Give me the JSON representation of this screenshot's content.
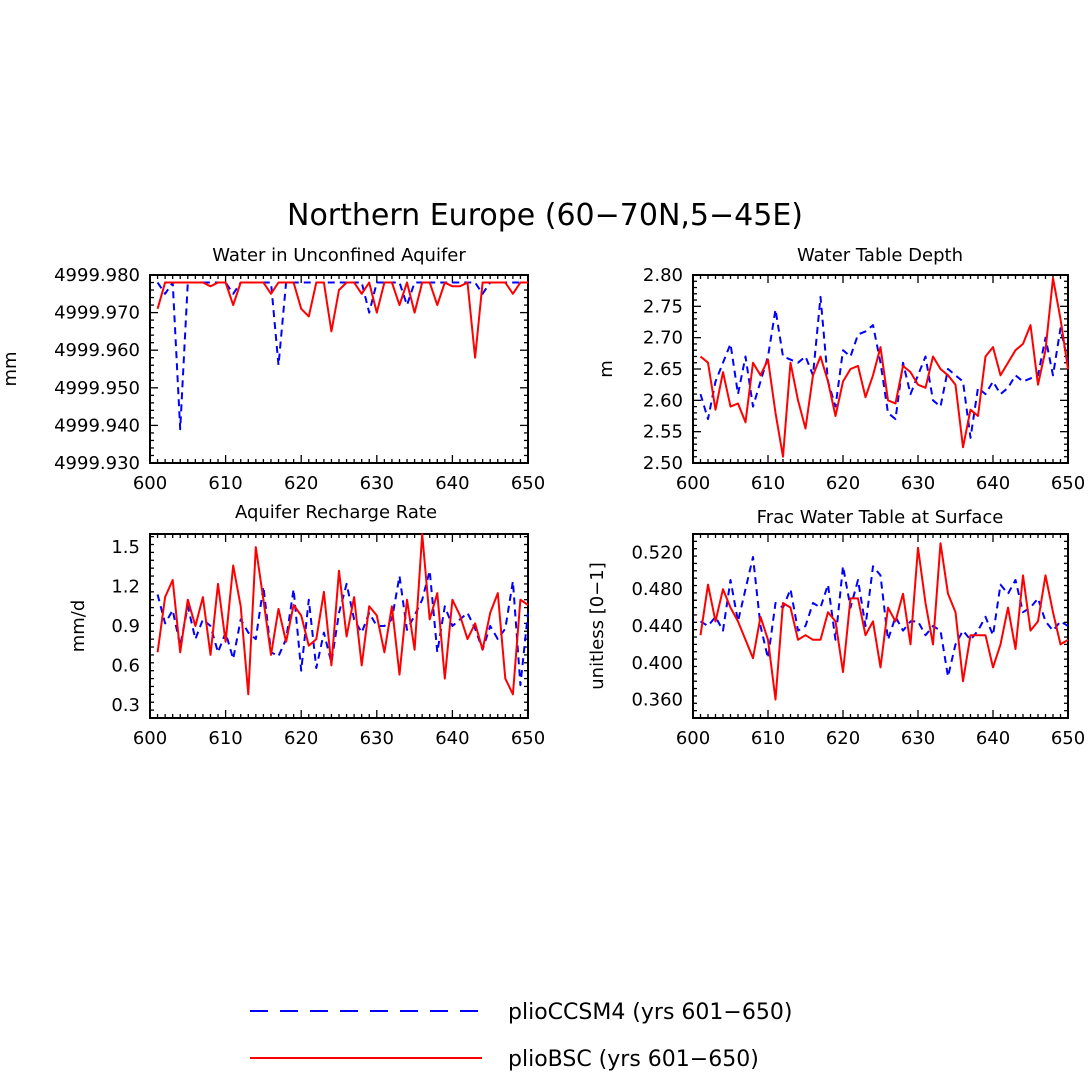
{
  "figure": {
    "title": "Northern Europe (60−70N,5−45E)"
  },
  "legend": [
    {
      "label": "plioCCSM4 (yrs 601−650)",
      "color": "#0000ff",
      "dash": true
    },
    {
      "label": "plioBSC (yrs 601−650)",
      "color": "#ff0000",
      "dash": false
    }
  ],
  "colors": {
    "plioCCSM4": "#0000ff",
    "plioBSC": "#ff0000",
    "axes": "#000000"
  },
  "chart_data": [
    {
      "type": "line",
      "title": "Water in Unconfined Aquifer",
      "ylabel": "mm",
      "xlim": [
        600,
        650
      ],
      "ylim": [
        4999.93,
        4999.98
      ],
      "xticks": [
        600,
        610,
        620,
        630,
        640,
        650
      ],
      "yticks": [
        4999.93,
        4999.94,
        4999.95,
        4999.96,
        4999.97,
        4999.98
      ],
      "yticklabels": [
        "4999.930",
        "4999.940",
        "4999.950",
        "4999.960",
        "4999.970",
        "4999.980"
      ],
      "x": [
        601,
        602,
        603,
        604,
        605,
        606,
        607,
        608,
        609,
        610,
        611,
        612,
        613,
        614,
        615,
        616,
        617,
        618,
        619,
        620,
        621,
        622,
        623,
        624,
        625,
        626,
        627,
        628,
        629,
        630,
        631,
        632,
        633,
        634,
        635,
        636,
        637,
        638,
        639,
        640,
        641,
        642,
        643,
        644,
        645,
        646,
        647,
        648,
        649,
        650
      ],
      "series": [
        {
          "name": "plioCCSM4",
          "values": [
            4999.978,
            4999.975,
            4999.978,
            4999.939,
            4999.978,
            4999.978,
            4999.978,
            4999.978,
            4999.978,
            4999.978,
            4999.975,
            4999.978,
            4999.978,
            4999.978,
            4999.978,
            4999.978,
            4999.956,
            4999.978,
            4999.978,
            4999.978,
            4999.978,
            4999.978,
            4999.978,
            4999.978,
            4999.978,
            4999.978,
            4999.978,
            4999.978,
            4999.97,
            4999.978,
            4999.978,
            4999.978,
            4999.978,
            4999.972,
            4999.978,
            4999.978,
            4999.978,
            4999.978,
            4999.978,
            4999.978,
            4999.978,
            4999.978,
            4999.978,
            4999.975,
            4999.978,
            4999.978,
            4999.978,
            4999.978,
            4999.978,
            4999.978
          ]
        },
        {
          "name": "plioBSC",
          "values": [
            4999.971,
            4999.978,
            4999.978,
            4999.978,
            4999.978,
            4999.978,
            4999.978,
            4999.977,
            4999.978,
            4999.978,
            4999.972,
            4999.978,
            4999.978,
            4999.978,
            4999.978,
            4999.975,
            4999.978,
            4999.978,
            4999.978,
            4999.971,
            4999.969,
            4999.978,
            4999.978,
            4999.965,
            4999.976,
            4999.978,
            4999.978,
            4999.975,
            4999.978,
            4999.97,
            4999.978,
            4999.978,
            4999.972,
            4999.978,
            4999.97,
            4999.978,
            4999.978,
            4999.972,
            4999.978,
            4999.977,
            4999.977,
            4999.978,
            4999.958,
            4999.978,
            4999.978,
            4999.978,
            4999.978,
            4999.975,
            4999.978,
            4999.978
          ]
        }
      ]
    },
    {
      "type": "line",
      "title": "Water Table Depth",
      "ylabel": "m",
      "xlim": [
        600,
        650
      ],
      "ylim": [
        2.5,
        2.8
      ],
      "xticks": [
        600,
        610,
        620,
        630,
        640,
        650
      ],
      "yticks": [
        2.5,
        2.55,
        2.6,
        2.65,
        2.7,
        2.75,
        2.8
      ],
      "yticklabels": [
        "2.50",
        "2.55",
        "2.60",
        "2.65",
        "2.70",
        "2.75",
        "2.80"
      ],
      "x": [
        601,
        602,
        603,
        604,
        605,
        606,
        607,
        608,
        609,
        610,
        611,
        612,
        613,
        614,
        615,
        616,
        617,
        618,
        619,
        620,
        621,
        622,
        623,
        624,
        625,
        626,
        627,
        628,
        629,
        630,
        631,
        632,
        633,
        634,
        635,
        636,
        637,
        638,
        639,
        640,
        641,
        642,
        643,
        644,
        645,
        646,
        647,
        648,
        649,
        650
      ],
      "series": [
        {
          "name": "plioCCSM4",
          "values": [
            2.61,
            2.57,
            2.63,
            2.66,
            2.69,
            2.61,
            2.67,
            2.59,
            2.63,
            2.67,
            2.745,
            2.67,
            2.665,
            2.66,
            2.67,
            2.64,
            2.765,
            2.63,
            2.59,
            2.68,
            2.67,
            2.705,
            2.71,
            2.72,
            2.66,
            2.58,
            2.57,
            2.66,
            2.61,
            2.64,
            2.67,
            2.6,
            2.59,
            2.65,
            2.64,
            2.63,
            2.54,
            2.62,
            2.61,
            2.63,
            2.61,
            2.62,
            2.64,
            2.63,
            2.635,
            2.64,
            2.7,
            2.64,
            2.715,
            2.66
          ]
        },
        {
          "name": "plioBSC",
          "values": [
            2.67,
            2.66,
            2.585,
            2.645,
            2.59,
            2.595,
            2.565,
            2.66,
            2.64,
            2.665,
            2.58,
            2.51,
            2.66,
            2.6,
            2.555,
            2.64,
            2.67,
            2.63,
            2.575,
            2.63,
            2.65,
            2.655,
            2.605,
            2.64,
            2.685,
            2.6,
            2.595,
            2.655,
            2.645,
            2.625,
            2.62,
            2.67,
            2.65,
            2.64,
            2.625,
            2.525,
            2.585,
            2.575,
            2.67,
            2.685,
            2.64,
            2.66,
            2.68,
            2.69,
            2.72,
            2.625,
            2.68,
            2.795,
            2.73,
            2.65
          ]
        }
      ]
    },
    {
      "type": "line",
      "title": "Aquifer Recharge Rate",
      "ylabel": "mm/d",
      "xlim": [
        600,
        650
      ],
      "ylim": [
        0.2,
        1.6
      ],
      "xticks": [
        600,
        610,
        620,
        630,
        640,
        650
      ],
      "yticks": [
        0.3,
        0.6,
        0.9,
        1.2,
        1.5
      ],
      "yticklabels": [
        "0.3",
        "0.6",
        "0.9",
        "1.2",
        "1.5"
      ],
      "x": [
        601,
        602,
        603,
        604,
        605,
        606,
        607,
        608,
        609,
        610,
        611,
        612,
        613,
        614,
        615,
        616,
        617,
        618,
        619,
        620,
        621,
        622,
        623,
        624,
        625,
        626,
        627,
        628,
        629,
        630,
        631,
        632,
        633,
        634,
        635,
        636,
        637,
        638,
        639,
        640,
        641,
        642,
        643,
        644,
        645,
        646,
        647,
        648,
        649,
        650
      ],
      "series": [
        {
          "name": "plioCCSM4",
          "values": [
            1.14,
            0.92,
            1.02,
            0.75,
            1.05,
            0.8,
            0.95,
            0.9,
            0.7,
            0.85,
            0.65,
            0.95,
            0.85,
            0.8,
            1.2,
            0.7,
            0.67,
            0.8,
            1.18,
            0.56,
            1.1,
            0.58,
            0.85,
            0.62,
            1.0,
            1.22,
            0.95,
            0.85,
            1.0,
            0.9,
            0.9,
            0.95,
            1.28,
            0.87,
            0.98,
            1.1,
            1.32,
            0.7,
            1.05,
            0.9,
            0.95,
            1.0,
            0.88,
            0.72,
            0.9,
            0.8,
            0.88,
            1.24,
            0.45,
            1.0
          ]
        },
        {
          "name": "plioBSC",
          "values": [
            0.7,
            1.12,
            1.25,
            0.7,
            1.1,
            0.9,
            1.12,
            0.68,
            1.22,
            0.78,
            1.36,
            1.05,
            0.38,
            1.5,
            1.1,
            0.68,
            1.03,
            0.78,
            1.06,
            0.98,
            0.75,
            0.8,
            1.16,
            0.6,
            1.32,
            0.82,
            1.12,
            0.6,
            1.05,
            0.98,
            0.7,
            1.05,
            0.53,
            1.1,
            0.72,
            1.61,
            0.95,
            1.15,
            0.5,
            1.1,
            0.98,
            0.8,
            0.92,
            0.72,
            1.0,
            1.15,
            0.5,
            0.38,
            1.1,
            1.06
          ]
        }
      ]
    },
    {
      "type": "line",
      "title": "Frac Water Table at Surface",
      "ylabel": "unitless [0−1]",
      "xlim": [
        600,
        650
      ],
      "ylim": [
        0.34,
        0.54
      ],
      "xticks": [
        600,
        610,
        620,
        630,
        640,
        650
      ],
      "yticks": [
        0.36,
        0.4,
        0.44,
        0.48,
        0.52
      ],
      "yticklabels": [
        "0.360",
        "0.400",
        "0.440",
        "0.480",
        "0.520"
      ],
      "x": [
        601,
        602,
        603,
        604,
        605,
        606,
        607,
        608,
        609,
        610,
        611,
        612,
        613,
        614,
        615,
        616,
        617,
        618,
        619,
        620,
        621,
        622,
        623,
        624,
        625,
        626,
        627,
        628,
        629,
        630,
        631,
        632,
        633,
        634,
        635,
        636,
        637,
        638,
        639,
        640,
        641,
        642,
        643,
        644,
        645,
        646,
        647,
        648,
        649,
        650
      ],
      "series": [
        {
          "name": "plioCCSM4",
          "values": [
            0.445,
            0.44,
            0.45,
            0.435,
            0.49,
            0.445,
            0.48,
            0.515,
            0.44,
            0.405,
            0.465,
            0.46,
            0.48,
            0.435,
            0.44,
            0.465,
            0.46,
            0.485,
            0.425,
            0.505,
            0.46,
            0.49,
            0.44,
            0.505,
            0.495,
            0.425,
            0.45,
            0.435,
            0.445,
            0.445,
            0.43,
            0.44,
            0.435,
            0.385,
            0.42,
            0.435,
            0.425,
            0.435,
            0.45,
            0.43,
            0.485,
            0.475,
            0.49,
            0.455,
            0.46,
            0.47,
            0.445,
            0.435,
            0.445,
            0.44
          ]
        },
        {
          "name": "plioBSC",
          "values": [
            0.43,
            0.485,
            0.445,
            0.48,
            0.46,
            0.445,
            0.425,
            0.405,
            0.45,
            0.425,
            0.36,
            0.465,
            0.46,
            0.425,
            0.43,
            0.425,
            0.425,
            0.455,
            0.445,
            0.39,
            0.47,
            0.47,
            0.43,
            0.445,
            0.395,
            0.46,
            0.445,
            0.475,
            0.42,
            0.525,
            0.465,
            0.42,
            0.53,
            0.475,
            0.455,
            0.38,
            0.43,
            0.43,
            0.43,
            0.395,
            0.42,
            0.46,
            0.415,
            0.495,
            0.435,
            0.445,
            0.495,
            0.455,
            0.42,
            0.425
          ]
        }
      ]
    }
  ]
}
